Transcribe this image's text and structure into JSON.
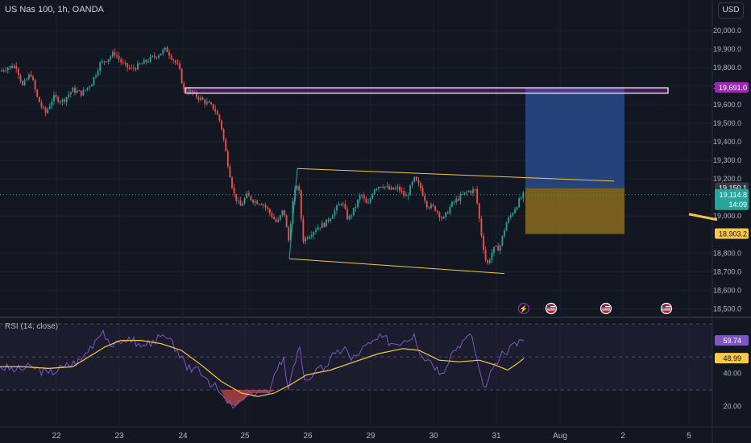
{
  "header": {
    "symbol_line": "US Nas 100, 1h, OANDA",
    "currency": "USD"
  },
  "rsi": {
    "title": "RSI (14, close)"
  },
  "colors": {
    "bg": "#131722",
    "up": "#26a69a",
    "down": "#ef5350",
    "rsi_line": "#7e57c2",
    "rsi_ma": "#f7c948",
    "trend_line": "#f5c542",
    "resistance_box": "#9c27b0",
    "target_zone": "#2a4a8a",
    "stop_zone": "#8a6d1e"
  },
  "icons": [
    "lightning-icon",
    "us-flag-icon",
    "us-flag-icon",
    "us-flag-icon"
  ],
  "chart_data": [
    {
      "type": "candlestick",
      "title": "US Nas 100, 1h, OANDA",
      "ylim": [
        18480,
        20060
      ],
      "y_ticks": [
        {
          "value": 20000,
          "label": "20,000.0"
        },
        {
          "value": 19900,
          "label": "19,900.0"
        },
        {
          "value": 19800,
          "label": "19,800.0"
        },
        {
          "value": 19700,
          "label": "19,700.0"
        },
        {
          "value": 19600,
          "label": "19,600.0"
        },
        {
          "value": 19500,
          "label": "19,500.0"
        },
        {
          "value": 19400,
          "label": "19,400.0"
        },
        {
          "value": 19300,
          "label": "19,300.0"
        },
        {
          "value": 19200,
          "label": "19,200.0"
        },
        {
          "value": 19000,
          "label": "19,000.0"
        },
        {
          "value": 18800,
          "label": "18,800.0"
        },
        {
          "value": 18700,
          "label": "18,700.0"
        },
        {
          "value": 18600,
          "label": "18,600.0"
        },
        {
          "value": 18500,
          "label": "18,500.0"
        }
      ],
      "x_ticks": [
        "22",
        "23",
        "24",
        "25",
        "26",
        "29",
        "30",
        "31",
        "Aug",
        "2",
        "5"
      ],
      "price_labels": [
        {
          "value": 19691,
          "label": "19,691.0",
          "color": "#9c27b0"
        },
        {
          "value": 19150.1,
          "label": "19,150.1",
          "color": "#363a45"
        },
        {
          "value": 19114.8,
          "label": "19,114.8",
          "sub": "14:09",
          "color": "#26a69a"
        },
        {
          "value": 18903.2,
          "label": "18,903.2",
          "color": "#f7c948"
        }
      ],
      "path": [
        [
          0,
          19780
        ],
        [
          8,
          19800
        ],
        [
          20,
          19810
        ],
        [
          28,
          19700
        ],
        [
          38,
          19770
        ],
        [
          46,
          19640
        ],
        [
          56,
          19550
        ],
        [
          66,
          19640
        ],
        [
          78,
          19620
        ],
        [
          90,
          19680
        ],
        [
          102,
          19660
        ],
        [
          114,
          19720
        ],
        [
          124,
          19820
        ],
        [
          134,
          19850
        ],
        [
          142,
          19880
        ],
        [
          152,
          19820
        ],
        [
          162,
          19790
        ],
        [
          172,
          19810
        ],
        [
          184,
          19840
        ],
        [
          196,
          19870
        ],
        [
          206,
          19900
        ],
        [
          214,
          19850
        ],
        [
          222,
          19800
        ],
        [
          228,
          19680
        ],
        [
          236,
          19670
        ],
        [
          246,
          19640
        ],
        [
          256,
          19610
        ],
        [
          266,
          19580
        ],
        [
          274,
          19500
        ],
        [
          282,
          19300
        ],
        [
          290,
          19120
        ],
        [
          298,
          19050
        ],
        [
          306,
          19110
        ],
        [
          316,
          19080
        ],
        [
          326,
          19070
        ],
        [
          336,
          19010
        ],
        [
          344,
          18960
        ],
        [
          352,
          19040
        ],
        [
          358,
          18860
        ],
        [
          364,
          19100
        ],
        [
          370,
          19190
        ],
        [
          376,
          18870
        ],
        [
          384,
          18900
        ],
        [
          394,
          18940
        ],
        [
          404,
          18960
        ],
        [
          414,
          19020
        ],
        [
          424,
          19080
        ],
        [
          432,
          18980
        ],
        [
          440,
          19040
        ],
        [
          448,
          19120
        ],
        [
          456,
          19050
        ],
        [
          464,
          19150
        ],
        [
          474,
          19170
        ],
        [
          484,
          19140
        ],
        [
          494,
          19150
        ],
        [
          504,
          19100
        ],
        [
          514,
          19200
        ],
        [
          522,
          19150
        ],
        [
          530,
          19060
        ],
        [
          540,
          19040
        ],
        [
          550,
          18980
        ],
        [
          560,
          19060
        ],
        [
          570,
          19100
        ],
        [
          580,
          19130
        ],
        [
          590,
          19140
        ],
        [
          598,
          18880
        ],
        [
          604,
          18730
        ],
        [
          612,
          18820
        ],
        [
          620,
          18830
        ],
        [
          628,
          18960
        ],
        [
          636,
          19020
        ],
        [
          644,
          19080
        ],
        [
          650,
          19115
        ]
      ],
      "resistance_zone": {
        "x_range": [
          230,
          829
        ],
        "y_range": [
          19662,
          19691
        ],
        "price": 19691
      },
      "channel": {
        "upper": [
          [
            369,
            19256
          ],
          [
            762,
            19188
          ]
        ],
        "lower": [
          [
            359,
            18770
          ],
          [
            626,
            18690
          ]
        ],
        "left": [
          [
            359,
            18770
          ],
          [
            369,
            19256
          ]
        ]
      },
      "position": {
        "x_range": [
          652,
          775
        ],
        "entry": 19150.1,
        "target": 19691,
        "stop": 18903.2
      }
    },
    {
      "type": "line",
      "title": "RSI (14, close)",
      "ylim": [
        10,
        72
      ],
      "y_ticks": [
        {
          "value": 40,
          "label": "40.00"
        },
        {
          "value": 20,
          "label": "20.00"
        }
      ],
      "bands": [
        30,
        50,
        70
      ],
      "series": [
        {
          "role": "rsi",
          "points": [
            [
              0,
              44
            ],
            [
              20,
              42
            ],
            [
              40,
              44
            ],
            [
              60,
              40
            ],
            [
              80,
              44
            ],
            [
              100,
              48
            ],
            [
              118,
              60
            ],
            [
              128,
              66
            ],
            [
              140,
              56
            ],
            [
              150,
              58
            ],
            [
              160,
              62
            ],
            [
              175,
              56
            ],
            [
              190,
              60
            ],
            [
              205,
              62
            ],
            [
              220,
              54
            ],
            [
              232,
              42
            ],
            [
              246,
              44
            ],
            [
              258,
              36
            ],
            [
              270,
              30
            ],
            [
              282,
              22
            ],
            [
              292,
              20
            ],
            [
              302,
              24
            ],
            [
              312,
              28
            ],
            [
              322,
              30
            ],
            [
              334,
              28
            ],
            [
              344,
              42
            ],
            [
              352,
              50
            ],
            [
              358,
              30
            ],
            [
              364,
              44
            ],
            [
              372,
              56
            ],
            [
              378,
              36
            ],
            [
              390,
              40
            ],
            [
              404,
              44
            ],
            [
              416,
              52
            ],
            [
              428,
              56
            ],
            [
              436,
              48
            ],
            [
              448,
              54
            ],
            [
              460,
              58
            ],
            [
              474,
              62
            ],
            [
              488,
              58
            ],
            [
              502,
              60
            ],
            [
              514,
              64
            ],
            [
              524,
              50
            ],
            [
              534,
              48
            ],
            [
              548,
              40
            ],
            [
              560,
              52
            ],
            [
              574,
              60
            ],
            [
              586,
              62
            ],
            [
              594,
              44
            ],
            [
              600,
              32
            ],
            [
              606,
              36
            ],
            [
              614,
              46
            ],
            [
              626,
              52
            ],
            [
              636,
              58
            ],
            [
              650,
              59.74
            ]
          ]
        },
        {
          "role": "ma",
          "points": [
            [
              0,
              44
            ],
            [
              30,
              44
            ],
            [
              60,
              43
            ],
            [
              90,
              44
            ],
            [
              110,
              50
            ],
            [
              130,
              56
            ],
            [
              150,
              60
            ],
            [
              175,
              60
            ],
            [
              200,
              58
            ],
            [
              225,
              54
            ],
            [
              250,
              45
            ],
            [
              275,
              35
            ],
            [
              300,
              28
            ],
            [
              320,
              26
            ],
            [
              340,
              28
            ],
            [
              360,
              33
            ],
            [
              380,
              39
            ],
            [
              410,
              42
            ],
            [
              440,
              47
            ],
            [
              470,
              52
            ],
            [
              500,
              55
            ],
            [
              520,
              54
            ],
            [
              545,
              48
            ],
            [
              570,
              47
            ],
            [
              595,
              48
            ],
            [
              615,
              45
            ],
            [
              630,
              42
            ],
            [
              642,
              46
            ],
            [
              650,
              48.99
            ]
          ]
        }
      ],
      "value_labels": [
        {
          "value": 59.74,
          "label": "59.74",
          "color": "#7e57c2"
        },
        {
          "value": 48.99,
          "label": "48.99",
          "color": "#f7c948"
        }
      ]
    }
  ]
}
